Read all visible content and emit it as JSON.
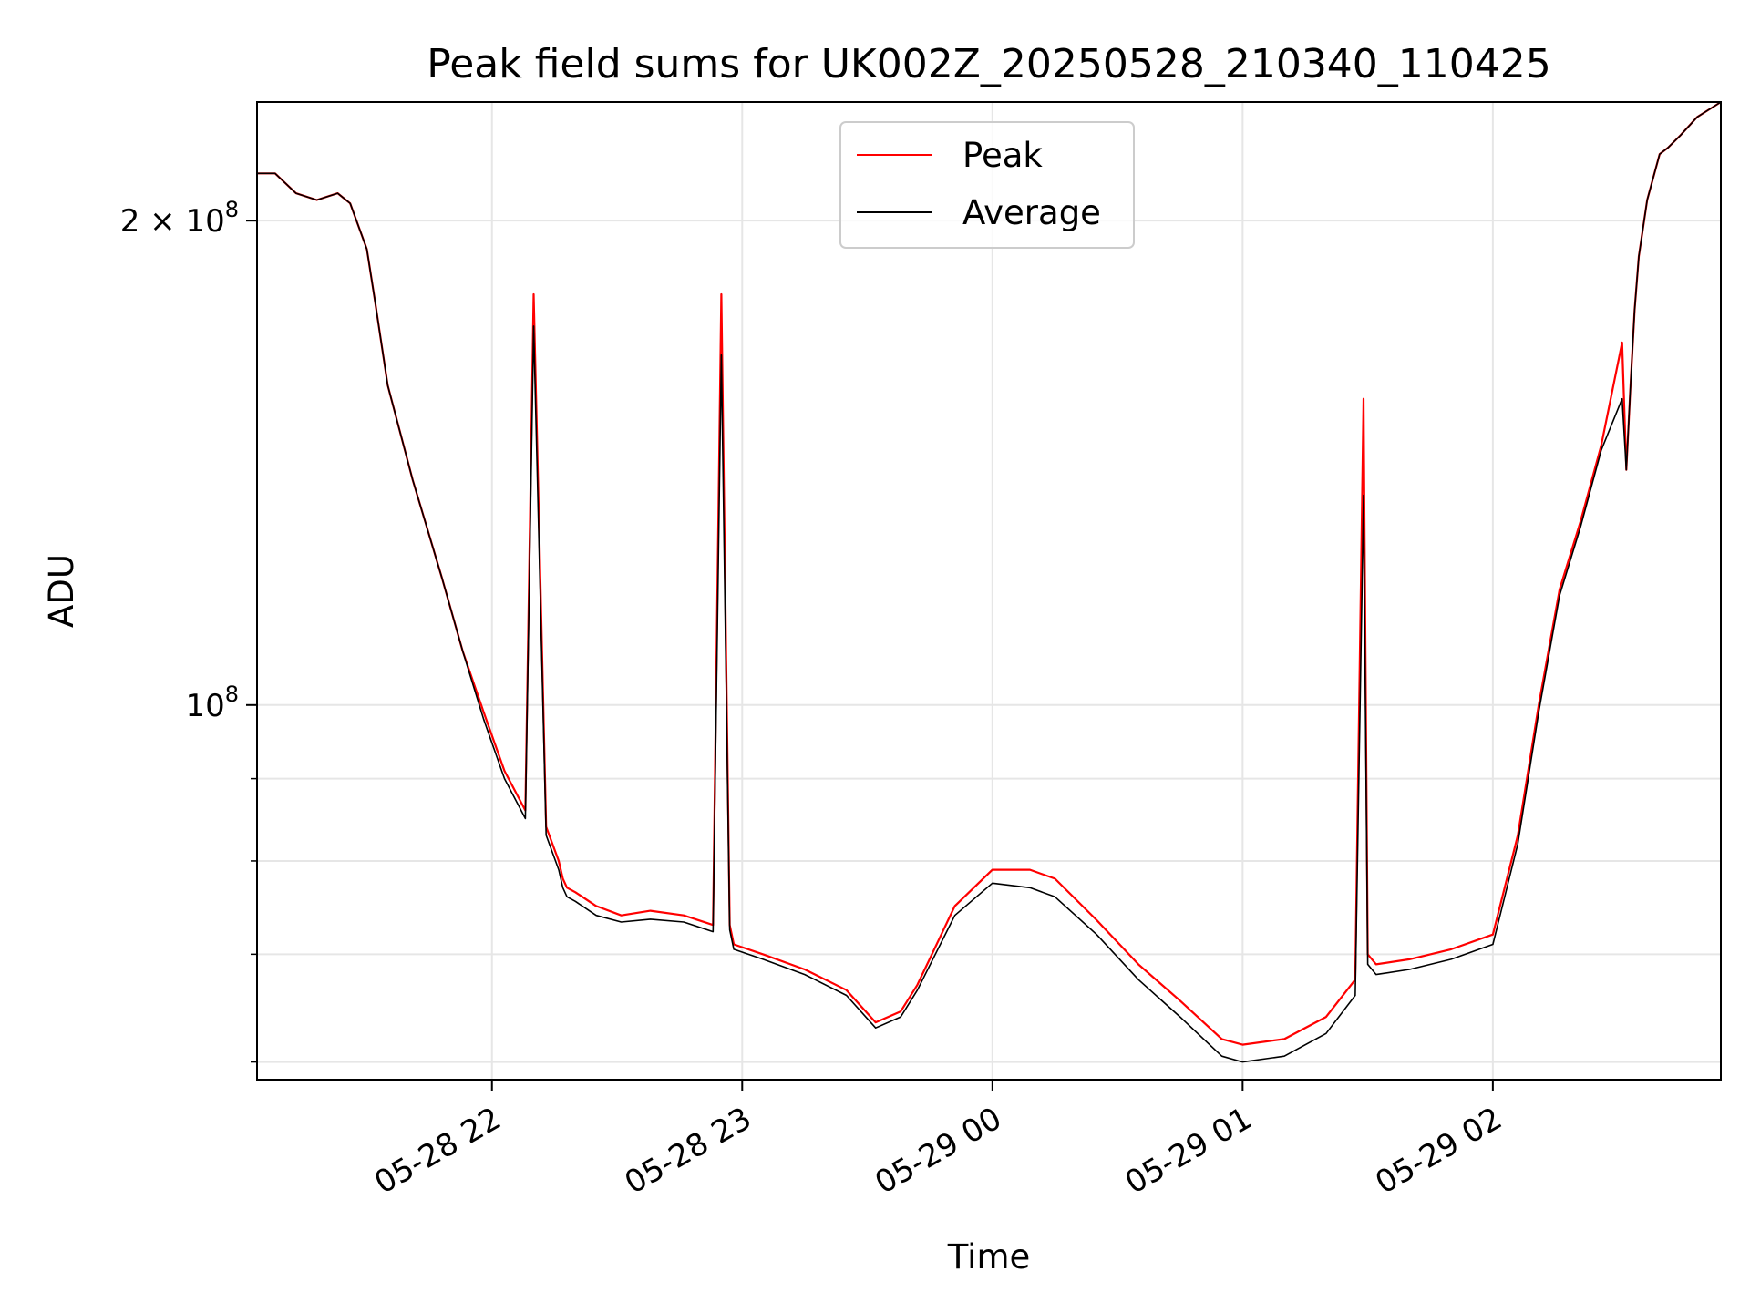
{
  "chart_data": {
    "type": "line",
    "title": "Peak field sums for UK002Z_20250528_210340_110425",
    "xlabel": "Time",
    "ylabel": "ADU",
    "y_scale": "log",
    "xlim": [
      "2025-05-28 21:03:40",
      "2025-05-29 02:54:40"
    ],
    "ylim": [
      58500000,
      237000000
    ],
    "grid": true,
    "legend_position": "top-center",
    "x_tick_labels": [
      "05-28 22",
      "05-28 23",
      "05-29 00",
      "05-29 01",
      "05-29 02"
    ],
    "x_ticks": [
      "2025-05-28 22:00",
      "2025-05-28 23:00",
      "2025-05-29 00:00",
      "2025-05-29 01:00",
      "2025-05-29 02:00"
    ],
    "y_major_ticks": [
      {
        "value": 100000000,
        "base": "10",
        "exp": "8",
        "coef": ""
      },
      {
        "value": 200000000,
        "base": "10",
        "exp": "8",
        "coef": "2 × "
      }
    ],
    "y_minor_ticks": [
      60000000,
      70000000,
      80000000,
      90000000
    ],
    "series": [
      {
        "name": "Peak",
        "color": "#ff0000",
        "x": [
          "2025-05-28 21:03:40",
          "2025-05-28 21:08",
          "2025-05-28 21:13",
          "2025-05-28 21:18",
          "2025-05-28 21:23",
          "2025-05-28 21:26",
          "2025-05-28 21:30",
          "2025-05-28 21:32",
          "2025-05-28 21:35",
          "2025-05-28 21:41",
          "2025-05-28 21:44",
          "2025-05-28 21:48",
          "2025-05-28 21:53",
          "2025-05-28 21:58",
          "2025-05-28 22:03",
          "2025-05-28 22:08",
          "2025-05-28 22:10",
          "2025-05-28 22:13",
          "2025-05-28 22:16",
          "2025-05-28 22:17",
          "2025-05-28 22:18",
          "2025-05-28 22:20",
          "2025-05-28 22:25",
          "2025-05-28 22:31",
          "2025-05-28 22:38",
          "2025-05-28 22:46",
          "2025-05-28 22:53",
          "2025-05-28 22:55",
          "2025-05-28 22:57",
          "2025-05-28 22:58",
          "2025-05-28 23:05",
          "2025-05-28 23:15",
          "2025-05-28 23:25",
          "2025-05-28 23:32",
          "2025-05-28 23:38",
          "2025-05-28 23:42",
          "2025-05-28 23:51",
          "2025-05-29 00:00",
          "2025-05-29 00:09",
          "2025-05-29 00:15",
          "2025-05-29 00:25",
          "2025-05-29 00:35",
          "2025-05-29 00:45",
          "2025-05-29 00:55",
          "2025-05-29 01:00",
          "2025-05-29 01:10",
          "2025-05-29 01:20",
          "2025-05-29 01:27",
          "2025-05-29 01:29",
          "2025-05-29 01:30",
          "2025-05-29 01:32",
          "2025-05-29 01:40",
          "2025-05-29 01:50",
          "2025-05-29 02:00",
          "2025-05-29 02:06",
          "2025-05-29 02:11",
          "2025-05-29 02:16",
          "2025-05-29 02:21",
          "2025-05-29 02:26",
          "2025-05-29 02:31",
          "2025-05-29 02:32",
          "2025-05-29 02:33",
          "2025-05-29 02:34",
          "2025-05-29 02:35",
          "2025-05-29 02:37",
          "2025-05-29 02:40",
          "2025-05-29 02:42",
          "2025-05-29 02:45",
          "2025-05-29 02:49",
          "2025-05-29 02:54:40"
        ],
        "y": [
          214000000,
          214000000,
          208000000,
          206000000,
          208000000,
          205000000,
          192000000,
          178000000,
          158000000,
          138000000,
          130000000,
          120000000,
          108000000,
          99000000,
          91000000,
          86000000,
          180000000,
          84000000,
          80000000,
          78000000,
          77000000,
          76500000,
          75000000,
          74000000,
          74500000,
          74000000,
          73000000,
          180000000,
          73000000,
          71000000,
          70000000,
          68500000,
          66500000,
          63500000,
          64500000,
          67000000,
          75000000,
          79000000,
          79000000,
          78000000,
          73500000,
          69000000,
          65500000,
          62000000,
          61500000,
          62000000,
          64000000,
          67500000,
          155000000,
          70000000,
          69000000,
          69500000,
          70500000,
          72000000,
          83000000,
          100000000,
          118000000,
          130000000,
          145000000,
          168000000,
          140000000,
          158000000,
          176000000,
          190000000,
          206000000,
          220000000,
          222000000,
          226000000,
          232000000,
          237000000
        ]
      },
      {
        "name": "Average",
        "color": "#000000",
        "x": [
          "2025-05-28 21:03:40",
          "2025-05-28 21:08",
          "2025-05-28 21:13",
          "2025-05-28 21:18",
          "2025-05-28 21:23",
          "2025-05-28 21:26",
          "2025-05-28 21:30",
          "2025-05-28 21:32",
          "2025-05-28 21:35",
          "2025-05-28 21:41",
          "2025-05-28 21:44",
          "2025-05-28 21:48",
          "2025-05-28 21:53",
          "2025-05-28 21:58",
          "2025-05-28 22:03",
          "2025-05-28 22:08",
          "2025-05-28 22:10",
          "2025-05-28 22:13",
          "2025-05-28 22:16",
          "2025-05-28 22:17",
          "2025-05-28 22:18",
          "2025-05-28 22:20",
          "2025-05-28 22:25",
          "2025-05-28 22:31",
          "2025-05-28 22:38",
          "2025-05-28 22:46",
          "2025-05-28 22:53",
          "2025-05-28 22:55",
          "2025-05-28 22:57",
          "2025-05-28 22:58",
          "2025-05-28 23:05",
          "2025-05-28 23:15",
          "2025-05-28 23:25",
          "2025-05-28 23:32",
          "2025-05-28 23:38",
          "2025-05-28 23:42",
          "2025-05-28 23:51",
          "2025-05-29 00:00",
          "2025-05-29 00:09",
          "2025-05-29 00:15",
          "2025-05-29 00:25",
          "2025-05-29 00:35",
          "2025-05-29 00:45",
          "2025-05-29 00:55",
          "2025-05-29 01:00",
          "2025-05-29 01:10",
          "2025-05-29 01:20",
          "2025-05-29 01:27",
          "2025-05-29 01:29",
          "2025-05-29 01:30",
          "2025-05-29 01:32",
          "2025-05-29 01:40",
          "2025-05-29 01:50",
          "2025-05-29 02:00",
          "2025-05-29 02:06",
          "2025-05-29 02:11",
          "2025-05-29 02:16",
          "2025-05-29 02:21",
          "2025-05-29 02:26",
          "2025-05-29 02:31",
          "2025-05-29 02:32",
          "2025-05-29 02:33",
          "2025-05-29 02:34",
          "2025-05-29 02:35",
          "2025-05-29 02:37",
          "2025-05-29 02:40",
          "2025-05-29 02:42",
          "2025-05-29 02:45",
          "2025-05-29 02:49",
          "2025-05-29 02:54:40"
        ],
        "y": [
          214000000,
          214000000,
          208000000,
          206000000,
          208000000,
          205000000,
          192000000,
          178000000,
          158000000,
          138000000,
          130000000,
          120000000,
          108000000,
          98000000,
          90000000,
          85000000,
          172000000,
          83000000,
          79000000,
          77000000,
          76000000,
          75500000,
          74000000,
          73300000,
          73600000,
          73300000,
          72300000,
          165000000,
          72500000,
          70500000,
          69500000,
          68000000,
          66000000,
          63000000,
          64000000,
          66500000,
          74000000,
          77500000,
          77000000,
          76000000,
          72000000,
          67500000,
          64000000,
          60500000,
          60000000,
          60500000,
          62500000,
          66000000,
          135000000,
          69000000,
          68000000,
          68500000,
          69500000,
          71000000,
          82000000,
          99000000,
          117000000,
          129000000,
          144000000,
          155000000,
          140000000,
          158000000,
          176000000,
          190000000,
          206000000,
          220000000,
          222000000,
          226000000,
          232000000,
          237000000
        ]
      }
    ]
  }
}
